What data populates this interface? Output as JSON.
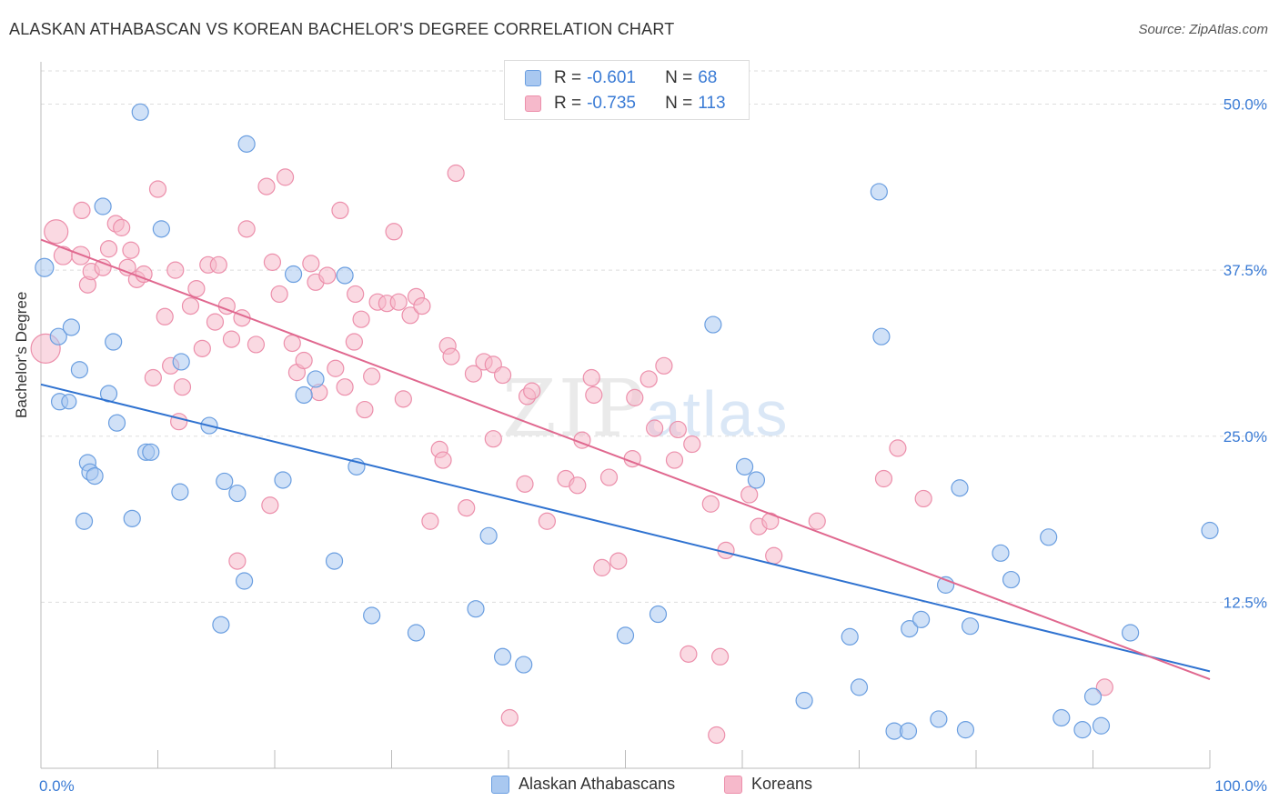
{
  "title": "ALASKAN ATHABASCAN VS KOREAN BACHELOR'S DEGREE CORRELATION CHART",
  "source": "Source: ZipAtlas.com",
  "watermark": {
    "a": "ZIP",
    "b": "atlas"
  },
  "colors": {
    "blue_fill": "#a9c8f0",
    "blue_stroke": "#6a9ee0",
    "blue_line": "#2f72d0",
    "pink_fill": "#f6b9cb",
    "pink_stroke": "#ec8fab",
    "pink_line": "#e0688f",
    "tick_text": "#3a7bd5",
    "grid": "#dddddd"
  },
  "legend": {
    "rows": [
      {
        "r_label": "R = ",
        "r_value": "-0.601",
        "n_label": "N = ",
        "n_value": "68",
        "swatch": "blue"
      },
      {
        "r_label": "R = ",
        "r_value": "-0.735",
        "n_label": "N = ",
        "n_value": "113",
        "swatch": "pink"
      }
    ]
  },
  "bottom_legend": [
    "Alaskan Athabascans",
    "Koreans"
  ],
  "chart_data": {
    "type": "scatter",
    "title": "ALASKAN ATHABASCAN VS KOREAN BACHELOR'S DEGREE CORRELATION CHART",
    "xlabel": "",
    "ylabel": "Bachelor's Degree",
    "xlim": [
      0,
      100
    ],
    "ylim": [
      0,
      52.5
    ],
    "x_tick_labels": [
      "0.0%",
      "100.0%"
    ],
    "y_ticks": [
      12.5,
      25.0,
      37.5,
      50.0
    ],
    "y_tick_labels": [
      "12.5%",
      "25.0%",
      "37.5%",
      "50.0%"
    ],
    "grid": true,
    "legend_position": "top-center",
    "series": [
      {
        "name": "Alaskan Athabascans",
        "color": "#a9c8f0",
        "trend": {
          "x": [
            0,
            100
          ],
          "y": [
            28.9,
            7.3
          ]
        },
        "points": [
          [
            0.3,
            37.7,
            10
          ],
          [
            1.5,
            32.5,
            9
          ],
          [
            1.6,
            27.6,
            9
          ],
          [
            2.4,
            27.6,
            8
          ],
          [
            3.3,
            30.0,
            9
          ],
          [
            4.0,
            23.0,
            9
          ],
          [
            4.2,
            22.3,
            9
          ],
          [
            4.6,
            22.0,
            9
          ],
          [
            2.6,
            33.2,
            9
          ],
          [
            5.3,
            42.3,
            9
          ],
          [
            5.8,
            28.2,
            9
          ],
          [
            6.2,
            32.1,
            9
          ],
          [
            6.5,
            26.0,
            9
          ],
          [
            7.8,
            18.8,
            9
          ],
          [
            3.7,
            18.6,
            9
          ],
          [
            8.5,
            49.4,
            9
          ],
          [
            9.0,
            23.8,
            9
          ],
          [
            9.4,
            23.8,
            9
          ],
          [
            10.3,
            40.6,
            9
          ],
          [
            11.9,
            20.8,
            9
          ],
          [
            12.0,
            30.6,
            9
          ],
          [
            14.4,
            25.8,
            9
          ],
          [
            15.4,
            10.8,
            9
          ],
          [
            15.7,
            21.6,
            9
          ],
          [
            16.8,
            20.7,
            9
          ],
          [
            17.4,
            14.1,
            9
          ],
          [
            17.6,
            47.0,
            9
          ],
          [
            20.7,
            21.7,
            9
          ],
          [
            21.6,
            37.2,
            9
          ],
          [
            22.5,
            28.1,
            9
          ],
          [
            23.5,
            29.3,
            9
          ],
          [
            25.1,
            15.6,
            9
          ],
          [
            26.0,
            37.1,
            9
          ],
          [
            27.0,
            22.7,
            9
          ],
          [
            28.3,
            11.5,
            9
          ],
          [
            32.1,
            10.2,
            9
          ],
          [
            37.2,
            12.0,
            9
          ],
          [
            38.3,
            17.5,
            9
          ],
          [
            39.5,
            8.4,
            9
          ],
          [
            41.3,
            7.8,
            9
          ],
          [
            50.0,
            10.0,
            9
          ],
          [
            52.8,
            11.6,
            9
          ],
          [
            57.5,
            33.4,
            9
          ],
          [
            60.2,
            22.7,
            9
          ],
          [
            61.2,
            21.7,
            9
          ],
          [
            65.3,
            5.1,
            9
          ],
          [
            69.2,
            9.9,
            9
          ],
          [
            70.0,
            6.1,
            9
          ],
          [
            71.7,
            43.4,
            9
          ],
          [
            71.9,
            32.5,
            9
          ],
          [
            73.0,
            2.8,
            9
          ],
          [
            74.2,
            2.8,
            9
          ],
          [
            74.3,
            10.5,
            9
          ],
          [
            75.3,
            11.2,
            9
          ],
          [
            76.8,
            3.7,
            9
          ],
          [
            77.4,
            13.8,
            9
          ],
          [
            79.5,
            10.7,
            9
          ],
          [
            79.1,
            2.9,
            9
          ],
          [
            78.6,
            21.1,
            9
          ],
          [
            82.1,
            16.2,
            9
          ],
          [
            83.0,
            14.2,
            9
          ],
          [
            86.2,
            17.4,
            9
          ],
          [
            87.3,
            3.8,
            9
          ],
          [
            89.1,
            2.9,
            9
          ],
          [
            90.0,
            5.4,
            9
          ],
          [
            90.7,
            3.2,
            9
          ],
          [
            93.2,
            10.2,
            9
          ],
          [
            100.0,
            17.9,
            9
          ]
        ]
      },
      {
        "name": "Koreans",
        "color": "#f6b9cb",
        "trend": {
          "x": [
            0,
            100
          ],
          "y": [
            39.8,
            6.7
          ]
        },
        "points": [
          [
            0.4,
            31.6,
            16
          ],
          [
            1.3,
            40.4,
            13
          ],
          [
            1.9,
            38.6,
            10
          ],
          [
            3.4,
            38.6,
            10
          ],
          [
            3.5,
            42.0,
            9
          ],
          [
            4.0,
            36.4,
            9
          ],
          [
            4.3,
            37.4,
            9
          ],
          [
            5.3,
            37.7,
            9
          ],
          [
            5.8,
            39.1,
            9
          ],
          [
            6.4,
            41.0,
            9
          ],
          [
            6.9,
            40.7,
            9
          ],
          [
            7.4,
            37.7,
            9
          ],
          [
            7.7,
            39.0,
            9
          ],
          [
            8.2,
            36.8,
            9
          ],
          [
            8.8,
            37.2,
            9
          ],
          [
            9.6,
            29.4,
            9
          ],
          [
            10.0,
            43.6,
            9
          ],
          [
            10.6,
            34.0,
            9
          ],
          [
            11.1,
            30.3,
            9
          ],
          [
            11.5,
            37.5,
            9
          ],
          [
            11.8,
            26.1,
            9
          ],
          [
            12.1,
            28.7,
            9
          ],
          [
            12.8,
            34.8,
            9
          ],
          [
            13.3,
            36.1,
            9
          ],
          [
            13.8,
            31.6,
            9
          ],
          [
            14.3,
            37.9,
            9
          ],
          [
            14.9,
            33.6,
            9
          ],
          [
            15.2,
            37.9,
            9
          ],
          [
            15.9,
            34.8,
            9
          ],
          [
            16.3,
            32.3,
            9
          ],
          [
            16.8,
            15.6,
            9
          ],
          [
            17.2,
            33.9,
            9
          ],
          [
            17.6,
            40.6,
            9
          ],
          [
            18.4,
            31.9,
            9
          ],
          [
            19.3,
            43.8,
            9
          ],
          [
            19.6,
            19.8,
            9
          ],
          [
            19.8,
            38.1,
            9
          ],
          [
            20.4,
            35.7,
            9
          ],
          [
            20.9,
            44.5,
            9
          ],
          [
            21.5,
            32.0,
            9
          ],
          [
            21.9,
            29.8,
            9
          ],
          [
            22.5,
            30.7,
            9
          ],
          [
            23.1,
            38.0,
            9
          ],
          [
            23.5,
            36.6,
            9
          ],
          [
            23.8,
            28.3,
            9
          ],
          [
            24.5,
            37.1,
            9
          ],
          [
            25.2,
            30.1,
            9
          ],
          [
            25.6,
            42.0,
            9
          ],
          [
            26.0,
            28.7,
            9
          ],
          [
            26.8,
            32.1,
            9
          ],
          [
            26.9,
            35.7,
            9
          ],
          [
            27.4,
            33.8,
            9
          ],
          [
            27.7,
            27.0,
            9
          ],
          [
            28.3,
            29.5,
            9
          ],
          [
            28.8,
            35.1,
            9
          ],
          [
            29.6,
            35.0,
            9
          ],
          [
            30.2,
            40.4,
            9
          ],
          [
            30.6,
            35.1,
            9
          ],
          [
            31.0,
            27.8,
            9
          ],
          [
            31.6,
            34.1,
            9
          ],
          [
            32.1,
            35.5,
            9
          ],
          [
            32.6,
            34.8,
            9
          ],
          [
            33.3,
            18.6,
            9
          ],
          [
            34.1,
            24.0,
            9
          ],
          [
            34.4,
            23.2,
            9
          ],
          [
            34.8,
            31.8,
            9
          ],
          [
            35.1,
            31.0,
            9
          ],
          [
            35.5,
            44.8,
            9
          ],
          [
            36.4,
            19.6,
            9
          ],
          [
            37.0,
            29.7,
            9
          ],
          [
            37.9,
            30.6,
            9
          ],
          [
            38.7,
            24.8,
            9
          ],
          [
            38.7,
            30.4,
            9
          ],
          [
            39.5,
            29.6,
            9
          ],
          [
            40.1,
            3.8,
            9
          ],
          [
            41.4,
            21.4,
            9
          ],
          [
            41.6,
            28.0,
            9
          ],
          [
            42.0,
            28.4,
            9
          ],
          [
            43.3,
            18.6,
            9
          ],
          [
            44.9,
            21.8,
            9
          ],
          [
            45.9,
            21.3,
            9
          ],
          [
            46.3,
            24.7,
            9
          ],
          [
            47.1,
            29.4,
            9
          ],
          [
            47.3,
            28.1,
            9
          ],
          [
            48.0,
            15.1,
            9
          ],
          [
            48.6,
            21.9,
            9
          ],
          [
            49.4,
            15.6,
            9
          ],
          [
            50.6,
            23.3,
            9
          ],
          [
            50.8,
            27.9,
            9
          ],
          [
            52.0,
            29.3,
            9
          ],
          [
            52.5,
            25.6,
            9
          ],
          [
            53.3,
            30.3,
            9
          ],
          [
            54.2,
            23.2,
            9
          ],
          [
            54.5,
            25.5,
            9
          ],
          [
            55.4,
            8.6,
            9
          ],
          [
            55.7,
            24.4,
            9
          ],
          [
            57.3,
            19.9,
            9
          ],
          [
            57.8,
            2.5,
            9
          ],
          [
            58.1,
            8.4,
            9
          ],
          [
            58.6,
            16.4,
            9
          ],
          [
            60.6,
            20.6,
            9
          ],
          [
            61.4,
            18.2,
            9
          ],
          [
            62.4,
            18.6,
            9
          ],
          [
            62.7,
            16.0,
            9
          ],
          [
            66.4,
            18.6,
            9
          ],
          [
            72.1,
            21.8,
            9
          ],
          [
            73.3,
            24.1,
            9
          ],
          [
            75.5,
            20.3,
            9
          ],
          [
            91.0,
            6.1,
            9
          ]
        ]
      }
    ]
  }
}
